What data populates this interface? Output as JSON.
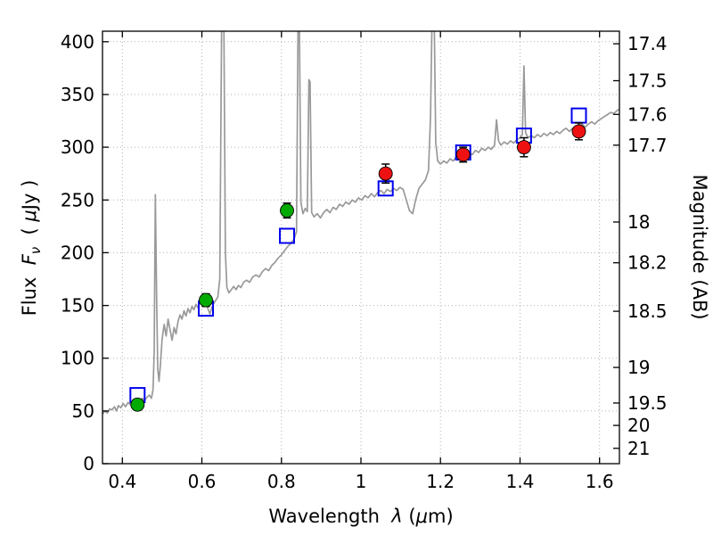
{
  "labels": {
    "xlabel": {
      "p1": "Wavelength  ",
      "p2": "λ",
      "p3": " (",
      "p4": "μ",
      "p5": "m)"
    },
    "ylabel_left": {
      "p1": "Flux  ",
      "p2": "F",
      "p3": "ν",
      "p4": "  ( ",
      "p5": "μ",
      "p6": "Jy )"
    },
    "ylabel_right": "Magnitude (AB)"
  },
  "chart_data": {
    "type": "line+scatter",
    "title": "",
    "xlabel": "Wavelength λ (μm)",
    "ylabel_left": "Flux Fν ( μJy )",
    "ylabel_right": "Magnitude (AB)",
    "axes": {
      "xlim": [
        0.35,
        1.65
      ],
      "ylim_flux": [
        0,
        410
      ],
      "grid": "dotted",
      "xticks": [
        {
          "v": 0.4,
          "label": "0.4"
        },
        {
          "v": 0.6,
          "label": "0.6"
        },
        {
          "v": 0.8,
          "label": "0.8"
        },
        {
          "v": 1.0,
          "label": "1"
        },
        {
          "v": 1.2,
          "label": "1.2"
        },
        {
          "v": 1.4,
          "label": "1.4"
        },
        {
          "v": 1.6,
          "label": "1.6"
        }
      ],
      "yticks_left": [
        {
          "v": 0,
          "label": "0"
        },
        {
          "v": 50,
          "label": "50"
        },
        {
          "v": 100,
          "label": "100"
        },
        {
          "v": 150,
          "label": "150"
        },
        {
          "v": 200,
          "label": "200"
        },
        {
          "v": 250,
          "label": "250"
        },
        {
          "v": 300,
          "label": "300"
        },
        {
          "v": 350,
          "label": "350"
        },
        {
          "v": 400,
          "label": "400"
        }
      ],
      "yticks_right": [
        {
          "flux": 398.1,
          "label": "17.4"
        },
        {
          "flux": 363.1,
          "label": "17.5"
        },
        {
          "flux": 331.1,
          "label": "17.6"
        },
        {
          "flux": 302.0,
          "label": "17.7"
        },
        {
          "flux": 229.1,
          "label": "18"
        },
        {
          "flux": 190.5,
          "label": "18.2"
        },
        {
          "flux": 144.5,
          "label": "18.5"
        },
        {
          "flux": 91.2,
          "label": "19"
        },
        {
          "flux": 57.5,
          "label": "19.5"
        },
        {
          "flux": 36.3,
          "label": "20"
        },
        {
          "flux": 14.5,
          "label": "21"
        }
      ]
    },
    "series": {
      "spectrum": {
        "color": "#999999",
        "points": [
          [
            0.35,
            47
          ],
          [
            0.356,
            50
          ],
          [
            0.362,
            48
          ],
          [
            0.368,
            52
          ],
          [
            0.374,
            51
          ],
          [
            0.38,
            54
          ],
          [
            0.385,
            50
          ],
          [
            0.39,
            55
          ],
          [
            0.396,
            53
          ],
          [
            0.402,
            57
          ],
          [
            0.408,
            54
          ],
          [
            0.414,
            58
          ],
          [
            0.42,
            56
          ],
          [
            0.426,
            59
          ],
          [
            0.432,
            58
          ],
          [
            0.438,
            60
          ],
          [
            0.444,
            59
          ],
          [
            0.45,
            62
          ],
          [
            0.456,
            60
          ],
          [
            0.462,
            63
          ],
          [
            0.468,
            65
          ],
          [
            0.473,
            62
          ],
          [
            0.477,
            70
          ],
          [
            0.48,
            105
          ],
          [
            0.483,
            255
          ],
          [
            0.486,
            160
          ],
          [
            0.489,
            90
          ],
          [
            0.492,
            78
          ],
          [
            0.496,
            95
          ],
          [
            0.5,
            118
          ],
          [
            0.505,
            132
          ],
          [
            0.51,
            121
          ],
          [
            0.515,
            137
          ],
          [
            0.52,
            127
          ],
          [
            0.525,
            117
          ],
          [
            0.53,
            129
          ],
          [
            0.535,
            123
          ],
          [
            0.54,
            135
          ],
          [
            0.545,
            141
          ],
          [
            0.55,
            137
          ],
          [
            0.555,
            145
          ],
          [
            0.56,
            140
          ],
          [
            0.565,
            147
          ],
          [
            0.57,
            143
          ],
          [
            0.575,
            149
          ],
          [
            0.58,
            146
          ],
          [
            0.585,
            151
          ],
          [
            0.59,
            148
          ],
          [
            0.595,
            153
          ],
          [
            0.6,
            151
          ],
          [
            0.605,
            155
          ],
          [
            0.61,
            152
          ],
          [
            0.615,
            147
          ],
          [
            0.62,
            142
          ],
          [
            0.625,
            148
          ],
          [
            0.63,
            152
          ],
          [
            0.635,
            155
          ],
          [
            0.64,
            158
          ],
          [
            0.645,
            175
          ],
          [
            0.65,
            430
          ],
          [
            0.655,
            430
          ],
          [
            0.659,
            200
          ],
          [
            0.663,
            167
          ],
          [
            0.668,
            162
          ],
          [
            0.674,
            165
          ],
          [
            0.68,
            168
          ],
          [
            0.686,
            165
          ],
          [
            0.692,
            169
          ],
          [
            0.698,
            167
          ],
          [
            0.705,
            172
          ],
          [
            0.712,
            174
          ],
          [
            0.72,
            172
          ],
          [
            0.728,
            177
          ],
          [
            0.736,
            179
          ],
          [
            0.744,
            177
          ],
          [
            0.752,
            182
          ],
          [
            0.76,
            185
          ],
          [
            0.768,
            183
          ],
          [
            0.776,
            188
          ],
          [
            0.784,
            191
          ],
          [
            0.792,
            195
          ],
          [
            0.8,
            198
          ],
          [
            0.808,
            202
          ],
          [
            0.816,
            206
          ],
          [
            0.824,
            209
          ],
          [
            0.832,
            213
          ],
          [
            0.838,
            220
          ],
          [
            0.842,
            430
          ],
          [
            0.845,
            430
          ],
          [
            0.849,
            248
          ],
          [
            0.854,
            237
          ],
          [
            0.86,
            242
          ],
          [
            0.865,
            239
          ],
          [
            0.869,
            364
          ],
          [
            0.872,
            362
          ],
          [
            0.876,
            238
          ],
          [
            0.882,
            234
          ],
          [
            0.89,
            237
          ],
          [
            0.898,
            233
          ],
          [
            0.906,
            238
          ],
          [
            0.914,
            241
          ],
          [
            0.922,
            238
          ],
          [
            0.93,
            243
          ],
          [
            0.938,
            241
          ],
          [
            0.946,
            246
          ],
          [
            0.954,
            244
          ],
          [
            0.962,
            248
          ],
          [
            0.97,
            246
          ],
          [
            0.978,
            250
          ],
          [
            0.986,
            248
          ],
          [
            0.994,
            252
          ],
          [
            1.002,
            250
          ],
          [
            1.01,
            254
          ],
          [
            1.018,
            252
          ],
          [
            1.026,
            256
          ],
          [
            1.034,
            253
          ],
          [
            1.042,
            257
          ],
          [
            1.05,
            259
          ],
          [
            1.058,
            256
          ],
          [
            1.066,
            260
          ],
          [
            1.074,
            258
          ],
          [
            1.082,
            261
          ],
          [
            1.09,
            259
          ],
          [
            1.098,
            262
          ],
          [
            1.106,
            260
          ],
          [
            1.114,
            250
          ],
          [
            1.122,
            240
          ],
          [
            1.13,
            237
          ],
          [
            1.138,
            251
          ],
          [
            1.146,
            261
          ],
          [
            1.154,
            265
          ],
          [
            1.162,
            269
          ],
          [
            1.17,
            278
          ],
          [
            1.175,
            330
          ],
          [
            1.179,
            430
          ],
          [
            1.184,
            430
          ],
          [
            1.188,
            305
          ],
          [
            1.193,
            287
          ],
          [
            1.2,
            284
          ],
          [
            1.208,
            287
          ],
          [
            1.216,
            285
          ],
          [
            1.224,
            289
          ],
          [
            1.232,
            287
          ],
          [
            1.24,
            291
          ],
          [
            1.248,
            289
          ],
          [
            1.256,
            293
          ],
          [
            1.264,
            291
          ],
          [
            1.272,
            295
          ],
          [
            1.28,
            293
          ],
          [
            1.288,
            297
          ],
          [
            1.296,
            295
          ],
          [
            1.304,
            299
          ],
          [
            1.312,
            297
          ],
          [
            1.32,
            300
          ],
          [
            1.328,
            298
          ],
          [
            1.336,
            302
          ],
          [
            1.341,
            326
          ],
          [
            1.346,
            306
          ],
          [
            1.352,
            302
          ],
          [
            1.36,
            305
          ],
          [
            1.368,
            303
          ],
          [
            1.376,
            306
          ],
          [
            1.384,
            304
          ],
          [
            1.392,
            307
          ],
          [
            1.4,
            309
          ],
          [
            1.406,
            312
          ],
          [
            1.41,
            377
          ],
          [
            1.414,
            314
          ],
          [
            1.42,
            309
          ],
          [
            1.428,
            311
          ],
          [
            1.436,
            309
          ],
          [
            1.444,
            312
          ],
          [
            1.452,
            310
          ],
          [
            1.46,
            313
          ],
          [
            1.468,
            311
          ],
          [
            1.476,
            314
          ],
          [
            1.484,
            312
          ],
          [
            1.492,
            315
          ],
          [
            1.5,
            313
          ],
          [
            1.508,
            316
          ],
          [
            1.516,
            318
          ],
          [
            1.524,
            315
          ],
          [
            1.532,
            318
          ],
          [
            1.54,
            317
          ],
          [
            1.548,
            320
          ],
          [
            1.556,
            322
          ],
          [
            1.564,
            319
          ],
          [
            1.572,
            322
          ],
          [
            1.58,
            324
          ],
          [
            1.588,
            322
          ],
          [
            1.596,
            325
          ],
          [
            1.604,
            327
          ],
          [
            1.612,
            329
          ],
          [
            1.62,
            331
          ],
          [
            1.628,
            333
          ],
          [
            1.636,
            332
          ],
          [
            1.648,
            336
          ]
        ]
      },
      "green_photometry": {
        "color": "#00aa00",
        "marker": "circle",
        "points": [
          {
            "x": 0.438,
            "y": 56,
            "yerr": 5
          },
          {
            "x": 0.61,
            "y": 155,
            "yerr": 6
          },
          {
            "x": 0.814,
            "y": 240,
            "yerr": 7
          }
        ]
      },
      "red_photometry": {
        "color": "#ee1111",
        "marker": "circle",
        "points": [
          {
            "x": 1.062,
            "y": 275,
            "yerr": 9
          },
          {
            "x": 1.257,
            "y": 293,
            "yerr": 7
          },
          {
            "x": 1.41,
            "y": 300,
            "yerr": 9
          },
          {
            "x": 1.548,
            "y": 315,
            "yerr": 8
          }
        ]
      },
      "model_squares": {
        "color": "#0000ee",
        "marker": "open-square",
        "points": [
          {
            "x": 0.438,
            "y": 65
          },
          {
            "x": 0.61,
            "y": 147
          },
          {
            "x": 0.814,
            "y": 216
          },
          {
            "x": 1.062,
            "y": 261
          },
          {
            "x": 1.257,
            "y": 295
          },
          {
            "x": 1.41,
            "y": 311
          },
          {
            "x": 1.548,
            "y": 330
          }
        ]
      }
    },
    "style": {
      "grid_color": "#b0b0b0",
      "frame_color": "#000000",
      "errorbar_color": "#000000"
    }
  }
}
